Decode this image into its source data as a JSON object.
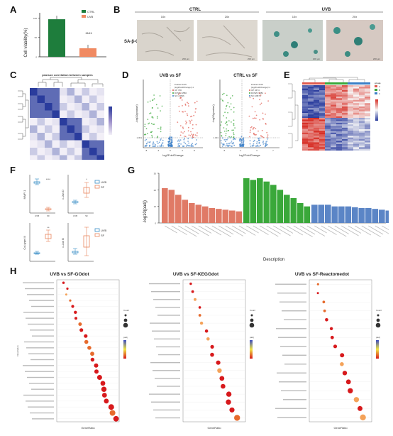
{
  "panels": {
    "A": {
      "letter": "A",
      "ylabel": "Cell viability(%)",
      "legend": [
        "CTRL",
        "UVB"
      ],
      "yticks": [
        "0",
        "50",
        "100"
      ],
      "sig": "****",
      "colors": {
        "ctrl": "#1e7d3c",
        "uvb": "#f08a62"
      },
      "values": {
        "ctrl": 97,
        "uvb": 22
      }
    },
    "B": {
      "letter": "B",
      "groups": [
        "CTRL",
        "UVB"
      ],
      "mags": [
        "10x",
        "20x",
        "10x",
        "20x"
      ],
      "rowlabel": "SA-β-Gal",
      "scale": "200 μm"
    },
    "C": {
      "letter": "C",
      "title": "pearson correlation between samples"
    },
    "D": {
      "letter": "D",
      "plots": [
        {
          "title": "UVB vs SF",
          "stats": [
            "Pvalue=0.05",
            "|log2FoldChange|>1",
            "UP 700",
            "DOWN 1580",
            "NO 24696"
          ],
          "xlabel": "log2FoldChange",
          "ylabel": "-log10(pvalue)",
          "xticks": [
            "-8",
            "-4",
            "0",
            "4",
            "8"
          ],
          "yline": "1.301"
        },
        {
          "title": "CTRL vs SF",
          "stats": [
            "Pvalue=0.05",
            "|log2FoldChange|>1",
            "UP 3474",
            "DOWN 3284",
            "NO 19874"
          ],
          "xlabel": "log2FoldChange",
          "ylabel": "-log10(pvalue)",
          "xticks": [
            "-5",
            "-1",
            "3",
            "7"
          ],
          "yline": "1.301"
        }
      ]
    },
    "E": {
      "letter": "E",
      "legend_title": "group",
      "legend": [
        "A",
        "B",
        "C"
      ]
    },
    "F": {
      "letter": "F",
      "plots": [
        {
          "ylabel": "MMP-1",
          "sig": "****"
        },
        {
          "ylabel": "c-Jun D",
          "sig": "*"
        },
        {
          "ylabel": "Col-type III",
          "sig": "**"
        },
        {
          "ylabel": "c-Jun B",
          "sig": ""
        }
      ],
      "xcats": [
        "UVB",
        "SF"
      ],
      "legend": [
        "UVB",
        "SF"
      ],
      "colors": {
        "uvb": "#3b8fc7",
        "sf": "#e8845c"
      }
    },
    "G": {
      "letter": "G",
      "ylabel": "-log10(padj)",
      "xlabel": "Description",
      "yticks": [
        "0",
        "10",
        "20",
        "30"
      ],
      "colors": [
        "#e07a66",
        "#3aa83a",
        "#5b85c6"
      ]
    },
    "H": {
      "letter": "H",
      "plots": [
        {
          "title": "UVB vs SF-GOdot",
          "xlabel": "GeneRatio",
          "ylabel": "Description"
        },
        {
          "title": "UVB vs SF-KEGGdot",
          "xlabel": "GeneRatio",
          "ylabel": ""
        },
        {
          "title": "UVB vs SF-Reactomedot",
          "xlabel": "GeneRatio",
          "ylabel": ""
        }
      ],
      "count_label": "Count",
      "padj_label": "padj"
    }
  },
  "chart_data": [
    {
      "type": "bar",
      "panel": "A",
      "categories": [
        "CTRL",
        "UVB"
      ],
      "values": [
        97,
        22
      ],
      "ylim": [
        0,
        110
      ],
      "ylabel": "Cell viability(%)"
    },
    {
      "type": "bar",
      "panel": "G",
      "ylabel": "-log10(padj)",
      "xlabel": "Description",
      "ylim": [
        0,
        30
      ],
      "series": [
        {
          "values": [
            21,
            20,
            17,
            14,
            12,
            11,
            10,
            9,
            8.5,
            8,
            7.5,
            7
          ]
        },
        {
          "values": [
            27,
            26,
            27,
            25,
            23,
            20,
            17,
            15,
            12,
            10
          ]
        },
        {
          "values": [
            11,
            11,
            11,
            10,
            10,
            10,
            9.5,
            9,
            9,
            8.5,
            8,
            7.5
          ]
        }
      ]
    }
  ]
}
